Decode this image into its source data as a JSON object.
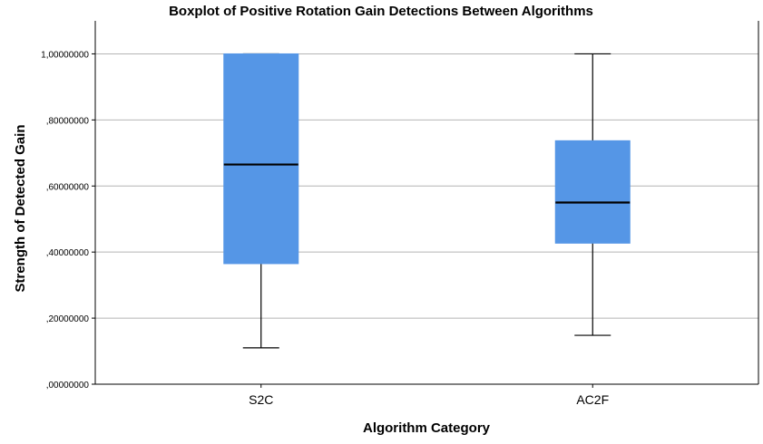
{
  "chart_data": {
    "type": "boxplot",
    "title": "Boxplot of Positive Rotation Gain Detections Between Algorithms",
    "xlabel": "Algorithm Category",
    "ylabel": "Strength of Detected Gain",
    "ylim": [
      0,
      1.1
    ],
    "yticks": [
      0,
      0.2,
      0.4,
      0.6,
      0.8,
      1.0
    ],
    "ytick_labels": [
      ",00000000",
      ",20000000",
      ",40000000",
      ",60000000",
      ",80000000",
      "1,00000000"
    ],
    "grid": true,
    "box_color": "#5596e6",
    "categories": [
      "S2C",
      "AC2F"
    ],
    "boxes": [
      {
        "category": "S2C",
        "min": 0.11,
        "q1": 0.365,
        "median": 0.665,
        "q3": 1.0,
        "max": 1.0
      },
      {
        "category": "AC2F",
        "min": 0.148,
        "q1": 0.427,
        "median": 0.55,
        "q3": 0.737,
        "max": 1.0
      }
    ]
  }
}
